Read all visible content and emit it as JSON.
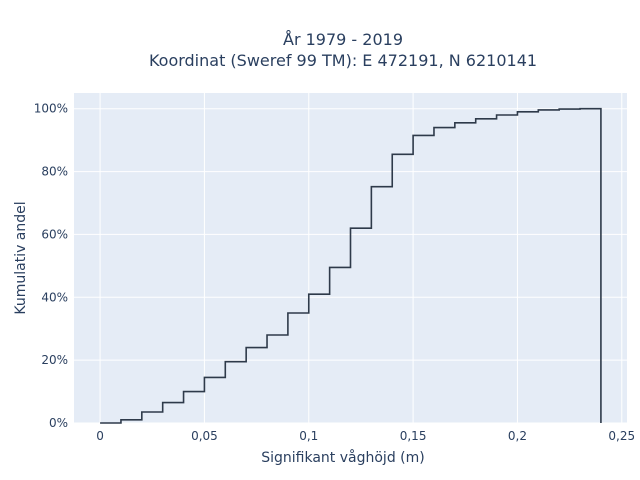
{
  "chart_data": {
    "type": "line",
    "line_shape": "step",
    "title_line1": "År 1979 - 2019",
    "title_line2": "Koordinat (Sweref 99 TM): E 472191, N 6210141",
    "xlabel": "Signifikant våghöjd (m)",
    "ylabel": "Kumulativ andel",
    "xlim": [
      -0.0125,
      0.2525
    ],
    "ylim": [
      0,
      1.05
    ],
    "x_ticks": [
      0,
      0.05,
      0.1,
      0.15,
      0.2,
      0.25
    ],
    "x_tick_labels": [
      "0",
      "0,05",
      "0,1",
      "0,15",
      "0,2",
      "0,25"
    ],
    "y_ticks": [
      0,
      0.2,
      0.4,
      0.6,
      0.8,
      1.0
    ],
    "y_tick_labels": [
      "0%",
      "20%",
      "40%",
      "60%",
      "80%",
      "100%"
    ],
    "grid": true,
    "colors": {
      "plot_bg": "#e5ecf6",
      "grid": "#ffffff",
      "line": "#2e3a4a",
      "text": "#2a3f5f"
    },
    "x": [
      0,
      0.01,
      0.02,
      0.03,
      0.04,
      0.05,
      0.06,
      0.07,
      0.08,
      0.09,
      0.1,
      0.11,
      0.12,
      0.13,
      0.14,
      0.15,
      0.16,
      0.17,
      0.18,
      0.19,
      0.2,
      0.21,
      0.22,
      0.23,
      0.24
    ],
    "y": [
      0,
      0.01,
      0.035,
      0.065,
      0.1,
      0.145,
      0.195,
      0.24,
      0.28,
      0.35,
      0.41,
      0.495,
      0.62,
      0.752,
      0.855,
      0.915,
      0.94,
      0.955,
      0.968,
      0.98,
      0.99,
      0.996,
      0.999,
      1.0,
      1.0
    ],
    "drop_to_zero_at": 0.24
  }
}
